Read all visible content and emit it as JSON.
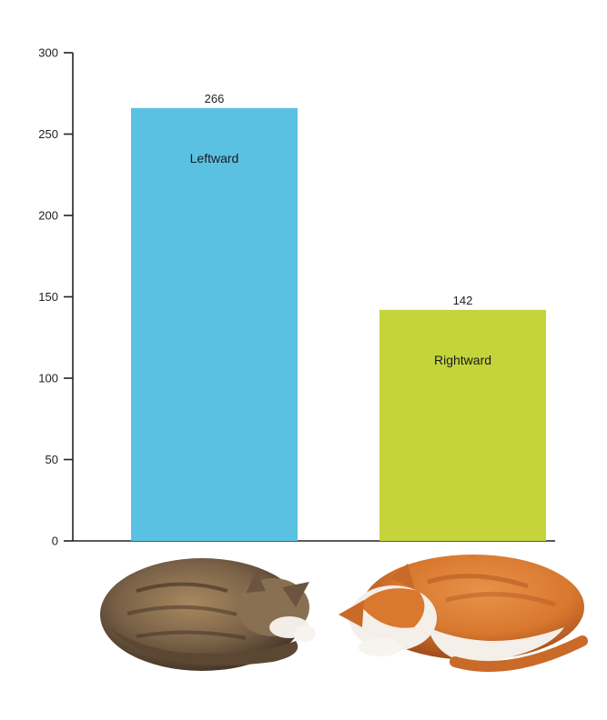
{
  "chart_data": {
    "type": "bar",
    "categories": [
      "Leftward",
      "Rightward"
    ],
    "values": [
      266,
      142
    ],
    "value_labels": [
      "266",
      "142"
    ],
    "title": "",
    "xlabel": "",
    "ylabel": "",
    "ylim": [
      0,
      300
    ],
    "yticks": [
      0,
      50,
      100,
      150,
      200,
      250,
      300
    ],
    "ytick_labels": [
      "0",
      "50",
      "100",
      "150",
      "200",
      "250",
      "300"
    ],
    "grid": false,
    "legend": "none",
    "colors": [
      "#5bc1e3",
      "#c4d43a"
    ]
  },
  "illustrations": [
    {
      "name": "tabby-cat-sleeping-curled-left",
      "colors": [
        "#7a6248",
        "#a9885f",
        "#3d2f22"
      ]
    },
    {
      "name": "orange-white-cat-sleeping-curled-right",
      "colors": [
        "#d9782f",
        "#f4efe8",
        "#b85a22"
      ]
    }
  ]
}
